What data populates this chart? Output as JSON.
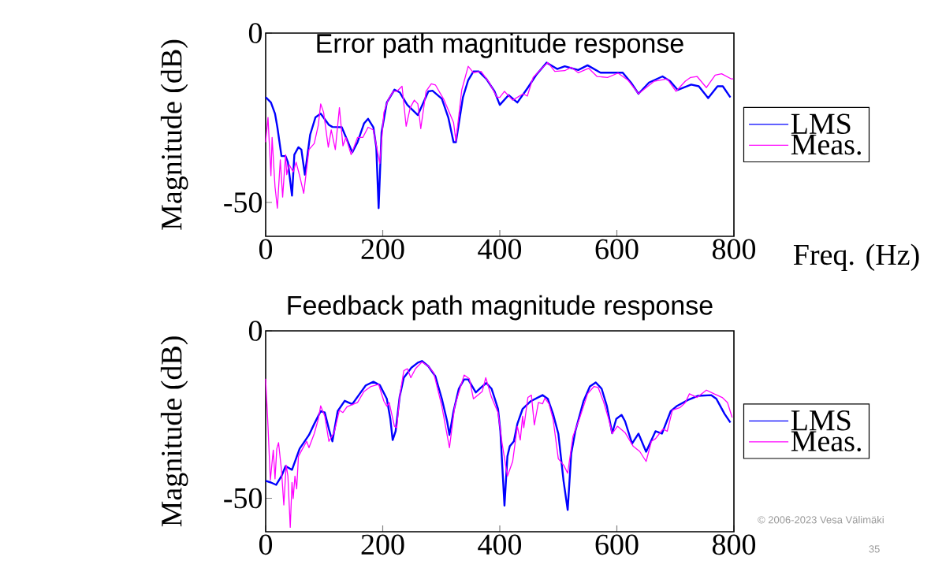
{
  "chart_data": [
    {
      "type": "line",
      "title": "Error path magnitude response",
      "ylabel": "Magnitude (dB)",
      "xlabel": "Freq. (Hz)",
      "xlim": [
        0,
        800
      ],
      "ylim": [
        -60,
        0
      ],
      "xticks": [
        0,
        200,
        400,
        600,
        800
      ],
      "yticks": [
        0,
        -50
      ],
      "legend": "right",
      "series": [
        {
          "name": "LMS",
          "color": "#0000ff",
          "x": [
            0,
            9,
            16,
            20,
            27,
            34,
            38,
            45,
            49,
            56,
            61,
            67,
            76,
            85,
            94,
            108,
            114,
            130,
            139,
            148,
            157,
            168,
            175,
            184,
            189,
            193,
            198,
            207,
            220,
            229,
            242,
            260,
            278,
            285,
            301,
            312,
            321,
            325,
            337,
            346,
            355,
            364,
            377,
            391,
            400,
            415,
            430,
            448,
            462,
            480,
            498,
            511,
            534,
            550,
            572,
            610,
            624,
            637,
            655,
            678,
            691,
            704,
            727,
            740,
            756,
            772,
            781,
            794
          ],
          "values": [
            -18.9,
            -20.5,
            -23.8,
            -27.8,
            -36.3,
            -36.3,
            -38.1,
            -48.0,
            -35.9,
            -33.7,
            -34.4,
            -41.8,
            -30.0,
            -24.9,
            -23.8,
            -27.1,
            -27.7,
            -27.8,
            -31.5,
            -35.2,
            -32.2,
            -26.7,
            -25.3,
            -27.8,
            -33.7,
            -51.7,
            -29.3,
            -20.5,
            -16.7,
            -17.5,
            -21.2,
            -24.2,
            -17.2,
            -17.0,
            -19.4,
            -24.9,
            -32.2,
            -32.2,
            -19.0,
            -13.9,
            -11.3,
            -11.3,
            -13.5,
            -17.2,
            -21.2,
            -18.3,
            -20.5,
            -16.1,
            -12.4,
            -8.7,
            -10.6,
            -9.8,
            -10.9,
            -9.5,
            -11.7,
            -11.7,
            -14.6,
            -17.9,
            -14.6,
            -12.8,
            -14.2,
            -16.8,
            -15.2,
            -15.7,
            -19.2,
            -15.7,
            -15.7,
            -19.0
          ]
        },
        {
          "name": "Meas.",
          "color": "#ff00ff",
          "x": [
            0,
            4,
            9,
            11,
            16,
            20,
            25,
            29,
            34,
            36,
            40,
            47,
            52,
            58,
            65,
            74,
            83,
            90,
            94,
            99,
            107,
            112,
            119,
            126,
            132,
            137,
            146,
            157,
            166,
            175,
            184,
            195,
            202,
            209,
            218,
            224,
            233,
            240,
            247,
            254,
            260,
            265,
            274,
            283,
            290,
            305,
            321,
            325,
            335,
            346,
            355,
            368,
            382,
            395,
            400,
            408,
            422,
            440,
            447,
            457,
            473,
            482,
            494,
            511,
            522,
            534,
            552,
            566,
            584,
            602,
            619,
            637,
            664,
            686,
            701,
            717,
            726,
            737,
            753,
            768,
            779,
            795,
            799
          ],
          "values": [
            -32.2,
            -24.9,
            -42.1,
            -30.8,
            -45.4,
            -51.7,
            -37.4,
            -48.4,
            -35.9,
            -41.8,
            -38.8,
            -41.0,
            -38.1,
            -42.1,
            -47.3,
            -34.4,
            -32.6,
            -27.1,
            -20.9,
            -23.4,
            -33.7,
            -28.6,
            -34.4,
            -22.0,
            -33.3,
            -30.8,
            -35.9,
            -30.8,
            -30.8,
            -27.8,
            -28.6,
            -38.5,
            -23.4,
            -19.8,
            -17.2,
            -17.2,
            -15.7,
            -27.5,
            -22.0,
            -19.8,
            -20.9,
            -28.2,
            -17.2,
            -15.0,
            -15.3,
            -19.8,
            -26.4,
            -31.9,
            -16.8,
            -9.8,
            -11.7,
            -11.3,
            -14.6,
            -18.9,
            -19.0,
            -17.2,
            -19.8,
            -17.9,
            -18.6,
            -13.1,
            -10.2,
            -8.7,
            -11.3,
            -11.1,
            -10.1,
            -11.7,
            -10.4,
            -12.8,
            -13.1,
            -11.8,
            -13.9,
            -17.9,
            -14.2,
            -13.5,
            -17.2,
            -14.2,
            -13.1,
            -12.8,
            -16.1,
            -12.4,
            -12.0,
            -13.5,
            -13.5
          ]
        }
      ]
    },
    {
      "type": "line",
      "title": "Feedback path magnitude response",
      "ylabel": "Magnitude (dB)",
      "xlim": [
        0,
        800
      ],
      "ylim": [
        -60,
        0
      ],
      "xticks": [
        0,
        200,
        400,
        600,
        800
      ],
      "yticks": [
        0,
        -50
      ],
      "legend": "right",
      "annotations": [
        "© 2006-2023 Vesa Välimäki",
        "35"
      ],
      "series": [
        {
          "name": "LMS",
          "color": "#0000ff",
          "x": [
            0,
            9,
            18,
            27,
            34,
            45,
            58,
            74,
            83,
            94,
            101,
            108,
            114,
            123,
            135,
            148,
            159,
            171,
            184,
            195,
            207,
            213,
            217,
            222,
            229,
            236,
            249,
            260,
            267,
            278,
            290,
            301,
            310,
            314,
            321,
            330,
            339,
            346,
            359,
            368,
            377,
            386,
            397,
            401,
            408,
            413,
            417,
            424,
            430,
            439,
            453,
            473,
            482,
            491,
            500,
            509,
            516,
            522,
            529,
            543,
            554,
            564,
            574,
            583,
            592,
            599,
            608,
            614,
            626,
            637,
            650,
            666,
            677,
            692,
            703,
            721,
            739,
            761,
            770,
            784,
            794
          ],
          "values": [
            -44.8,
            -45.3,
            -46.0,
            -43.4,
            -40.4,
            -41.5,
            -35.2,
            -31.1,
            -27.8,
            -24.0,
            -24.4,
            -29.3,
            -33.0,
            -24.0,
            -20.9,
            -21.9,
            -19.2,
            -16.3,
            -15.2,
            -16.2,
            -20.3,
            -26.3,
            -32.6,
            -30.0,
            -19.6,
            -14.0,
            -11.0,
            -9.5,
            -9.0,
            -10.6,
            -13.6,
            -20.3,
            -27.0,
            -31.1,
            -24.0,
            -17.3,
            -14.5,
            -14.5,
            -18.4,
            -16.9,
            -15.6,
            -17.3,
            -23.3,
            -30.0,
            -52.2,
            -37.5,
            -34.5,
            -33.0,
            -27.8,
            -23.3,
            -21.0,
            -19.2,
            -20.3,
            -24.8,
            -30.7,
            -44.9,
            -53.5,
            -36.7,
            -30.0,
            -21.0,
            -16.6,
            -15.4,
            -17.3,
            -22.5,
            -30.6,
            -26.3,
            -25.1,
            -27.0,
            -33.7,
            -30.7,
            -36.1,
            -30.0,
            -30.7,
            -24.0,
            -22.4,
            -20.7,
            -19.4,
            -19.2,
            -20.3,
            -24.8,
            -27.4
          ]
        },
        {
          "name": "Meas.",
          "color": "#ff00ff",
          "x": [
            0,
            4,
            8,
            13,
            16,
            19,
            22,
            27,
            31,
            35,
            38,
            42,
            45,
            47,
            50,
            53,
            56,
            63,
            70,
            74,
            83,
            90,
            94,
            101,
            108,
            117,
            126,
            132,
            139,
            157,
            168,
            180,
            193,
            202,
            207,
            211,
            220,
            224,
            229,
            236,
            242,
            248,
            256,
            267,
            278,
            287,
            301,
            314,
            323,
            339,
            348,
            355,
            370,
            376,
            386,
            397,
            404,
            413,
            422,
            430,
            435,
            439,
            441,
            448,
            454,
            459,
            466,
            473,
            477,
            484,
            491,
            500,
            509,
            516,
            525,
            536,
            550,
            561,
            568,
            577,
            586,
            592,
            601,
            614,
            628,
            639,
            650,
            659,
            666,
            679,
            686,
            695,
            708,
            717,
            724,
            737,
            753,
            766,
            780,
            789,
            797
          ],
          "values": [
            -14.3,
            -28.5,
            -44.6,
            -35.6,
            -44.2,
            -35.2,
            -33.4,
            -41.6,
            -52.0,
            -40.1,
            -43.4,
            -58.7,
            -45.3,
            -50.1,
            -43.4,
            -47.2,
            -37.5,
            -35.2,
            -33.0,
            -34.9,
            -30.7,
            -26.3,
            -22.4,
            -25.5,
            -33.0,
            -30.4,
            -23.7,
            -24.4,
            -22.7,
            -21.4,
            -18.1,
            -16.6,
            -16.0,
            -21.0,
            -22.5,
            -21.4,
            -28.5,
            -28.9,
            -19.6,
            -11.9,
            -11.3,
            -14.0,
            -11.3,
            -9.3,
            -10.6,
            -12.5,
            -22.5,
            -34.9,
            -22.5,
            -13.2,
            -14.3,
            -20.3,
            -18.1,
            -14.0,
            -19.9,
            -24.4,
            -33.7,
            -43.4,
            -39.0,
            -28.5,
            -32.6,
            -25.5,
            -28.9,
            -19.9,
            -19.2,
            -28.1,
            -21.4,
            -21.8,
            -20.1,
            -21.8,
            -26.3,
            -38.2,
            -40.1,
            -42.5,
            -31.5,
            -26.3,
            -18.8,
            -16.6,
            -16.9,
            -21.0,
            -26.3,
            -30.7,
            -28.5,
            -30.4,
            -34.5,
            -36.0,
            -39.0,
            -33.0,
            -32.2,
            -29.3,
            -30.0,
            -23.7,
            -22.9,
            -21.4,
            -18.8,
            -19.9,
            -17.7,
            -18.8,
            -19.9,
            -21.4,
            -25.9
          ]
        }
      ]
    }
  ]
}
